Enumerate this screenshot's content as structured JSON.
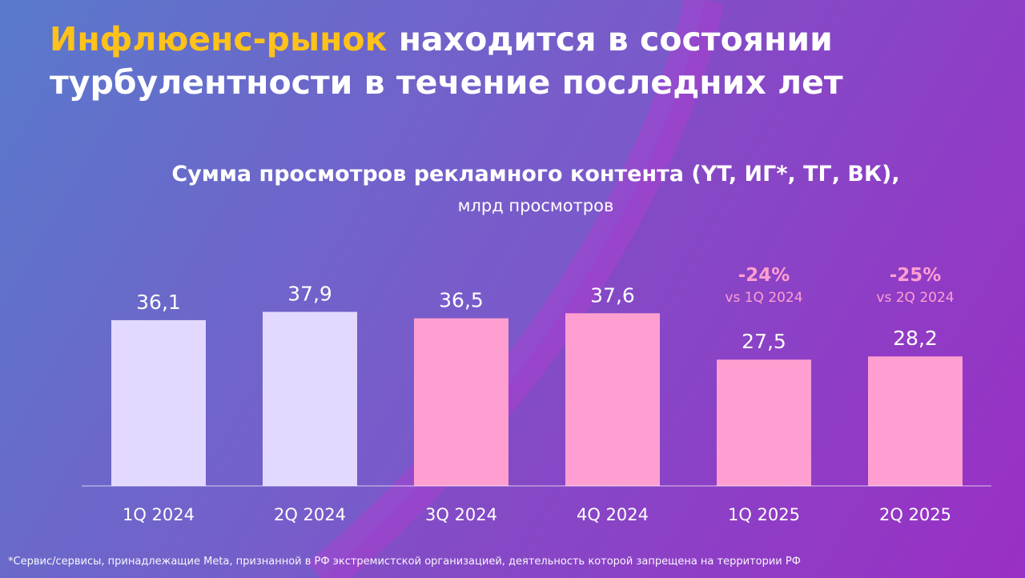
{
  "headline": {
    "highlight": "Инфлюенс-рынок",
    "rest": " находится в состоянии турбулентности в течение последних лет"
  },
  "chart_data": {
    "type": "bar",
    "title": "Сумма просмотров рекламного контента (YT, ИГ*, ТГ, ВК),",
    "subtitle": "млрд просмотров",
    "categories": [
      "1Q 2024",
      "2Q 2024",
      "3Q 2024",
      "4Q 2024",
      "1Q 2025",
      "2Q 2025"
    ],
    "values": [
      36.1,
      37.9,
      36.5,
      37.6,
      27.5,
      28.2
    ],
    "value_labels": [
      "36,1",
      "37,9",
      "36,5",
      "37,6",
      "27,5",
      "28,2"
    ],
    "bar_colors": [
      "#e3d8ff",
      "#e3d8ff",
      "#ff9fd1",
      "#ff9fd1",
      "#ff9fd1",
      "#ff9fd1"
    ],
    "annotations": [
      {
        "category": "1Q 2025",
        "change": "-24%",
        "note": "vs 1Q 2024"
      },
      {
        "category": "2Q 2025",
        "change": "-25%",
        "note": "vs 2Q 2024"
      }
    ],
    "annotation_color": "#ff9fd1",
    "xlabel": "",
    "ylabel": "",
    "ylim": [
      0,
      38
    ],
    "grid": false,
    "legend": "none"
  },
  "footnote": "*Сервис/сервисы, принадлежащие Meta, признанной в РФ экстремистской организацией, деятельность которой запрещена на территории РФ",
  "colors": {
    "background_start": "#4f7fc9",
    "background_end": "#9a2fc5",
    "headline_accent": "#ffc21a"
  }
}
